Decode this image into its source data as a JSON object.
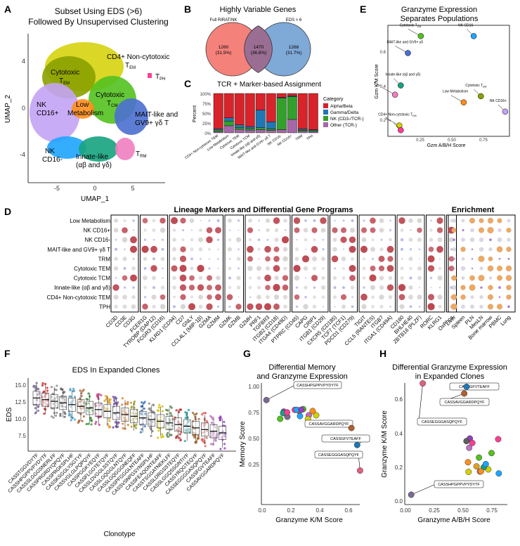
{
  "panel_letters": [
    "A",
    "B",
    "C",
    "D",
    "E",
    "F",
    "G",
    "H"
  ],
  "colors": {
    "cd4_noncyto": "#d4d000",
    "mait": "#4b6fd0",
    "nk_cd16pos": "#c3a3f5",
    "low_met": "#ff8e1c",
    "nk_cd16neg": "#1fa4ff",
    "innate": "#16a37f",
    "trm": "#ef7ec0",
    "tph": "#ff3e93",
    "cyto_tem": "#8aa100",
    "cyto_tcm": "#53c11f",
    "venn_left": "#f4827b",
    "venn_right": "#7fa9d7",
    "venn_overlap": "#9a6e93",
    "alpha_beta": "#d8232a",
    "gamma_delta": "#1f78b4",
    "nk_cd3": "#33a02c",
    "other": "#a567a8"
  },
  "panelA": {
    "title_line1": "Subset Using EDS (>6)",
    "title_line2": "Followed By Unsupervised Clustering",
    "xlabel": "UMAP_1",
    "ylabel": "UMAP_2",
    "xticks": [
      "-5",
      "0",
      "5"
    ],
    "yticks": [
      "4",
      "0",
      "-4"
    ],
    "labels": {
      "cd4_a": "CD4+ Non-cytotoxic",
      "cd4_b": "T",
      "cd4_sub": "EM",
      "tph_a": "T",
      "tph_sub": "PH",
      "cyto_tem_a": "Cytotoxic",
      "cyto_tem_b": "T",
      "cyto_tem_sub": "EM",
      "cyto_tcm_a": "Cytotoxic",
      "cyto_tcm_b": "T",
      "cyto_tcm_sub": "CM",
      "nk16p_a": "NK",
      "nk16p_b": "CD16+",
      "lowmet_a": "Low",
      "lowmet_b": "Metabolism",
      "mait_a": "MAIT-like and",
      "mait_b": "GV9+  γδ T",
      "nk16n_a": "NK",
      "nk16n_b": "CD16-",
      "innate_a": "Innate-like",
      "innate_b": "(αβ and γδ)",
      "trm_a": "T",
      "trm_sub": "RM"
    }
  },
  "panelB": {
    "title": "Highly Variable Genes",
    "left_label": "Full RIRAT/NK",
    "right_label": "EDS > 6",
    "left_count": "1260",
    "left_pct": "(31.5%)",
    "mid_count": "1470",
    "mid_pct": "(36.8%)",
    "right_count": "1268",
    "right_pct": "(31.7%)"
  },
  "panelC": {
    "title": "TCR + Marker-based Assignment",
    "ylabel": "Percent",
    "yticks": [
      "100%",
      "75%",
      "50%",
      "25%",
      "0%"
    ],
    "legend_title": "Category",
    "legend": [
      "Alpha/Beta",
      "Gamma/Delta",
      "NK (CD3-/TCR-)",
      "Other (TCR-)"
    ],
    "categories": [
      "CD4+ Non-cytotoxic TEM",
      "Low Metabolism",
      "Cytotoxic TEM",
      "Cytotoxic TCM",
      "Innate-like (αβ and γδ)",
      "MAIT-like and GV9+ γδ T",
      "NK CD16-",
      "NK CD16+",
      "TRM",
      "TPH"
    ]
  },
  "panelD": {
    "title": "Lineage Markers and Differential Gene Programs",
    "enrich_title": "Enrichment",
    "rows": [
      "Low Metabolism",
      "NK CD16+",
      "NK CD16-",
      "MAIT-like and GV9+ γδ T",
      "TRM",
      "Cytotoxic TEM",
      "Cytotoxic TCM",
      "Innate-like (αβ and γδ)",
      "CD4+ Non-cytotoxic TEM",
      "TPH"
    ],
    "genes": [
      "CD3D",
      "CD3E",
      "CD3G",
      "FCER1G",
      "TYROBP (DAP12)",
      "FCGR3 (CD16)",
      "KLRD1 (CD94)",
      "CD7",
      "GNLY",
      "CCL4L1 (MIP-1β)",
      "GZMA",
      "GZMM",
      "GZMK",
      "GZMB",
      "GZMH",
      "PRF1",
      "TGFBR3",
      "ITGB2 (CD18)",
      "ITGA4 (CD49D)",
      "PTPRC (CD45)",
      "CAPG",
      "CRIP1",
      "ITGB1 (CD29)",
      "CXCR5 (CD185)",
      "TCF7 (TCF1)",
      "PDCD1 (CD279)",
      "TIGIT",
      "CCL5 (RANTES)",
      "ITGB7",
      "ITGA1 (CD49A)",
      "CD160",
      "BHLHE40",
      "ZBTB16 (PLZF)",
      "RORC",
      "KLRG1",
      "OxPhos"
    ],
    "enrich_cols": [
      "Liver",
      "Spleen",
      "PLN",
      "MesLN",
      "Bone marrow",
      "PBMC",
      "Lung"
    ]
  },
  "panelE": {
    "title_line1": "Granzyme Expression",
    "title_line2": "Separates Populations",
    "xlabel": "Gzm A/B/H Score",
    "ylabel": "Gzm K/M Score",
    "xticks": [
      "0.25",
      "0.50",
      "0.75"
    ],
    "yticks": [
      "0.6",
      "0.4",
      "0.2"
    ],
    "points": [
      {
        "label": "Cytotoxic T",
        "sub": "CM",
        "x": 0.28,
        "y": 0.68,
        "color": "#53c11f"
      },
      {
        "label": "NK CD16-",
        "sub": "",
        "x": 0.65,
        "y": 0.68,
        "color": "#1fa4ff"
      },
      {
        "label": "MAIT-like and GV9+ γδ",
        "sub": "",
        "x": 0.19,
        "y": 0.57,
        "color": "#4b6fd0"
      },
      {
        "label": "Innate-like (αβ and γδ)",
        "sub": "",
        "x": 0.14,
        "y": 0.36,
        "color": "#16a37f"
      },
      {
        "label": "T",
        "sub": "RM",
        "x": 0.1,
        "y": 0.3,
        "color": "#ef7ec0"
      },
      {
        "label": "Cytotoxic T",
        "sub": "EM",
        "x": 0.7,
        "y": 0.29,
        "color": "#8aa100"
      },
      {
        "label": "Low Metabolism",
        "sub": "",
        "x": 0.58,
        "y": 0.25,
        "color": "#ff8e1c"
      },
      {
        "label": "NK CD16+",
        "sub": "",
        "x": 0.87,
        "y": 0.19,
        "color": "#c3a3f5"
      },
      {
        "label": "CD4+ Non-cytotoxic T",
        "sub": "EM",
        "x": 0.13,
        "y": 0.1,
        "color": "#d4d000"
      },
      {
        "label": "T",
        "sub": "PH",
        "x": 0.14,
        "y": 0.07,
        "color": "#ff3e93"
      }
    ]
  },
  "panelF": {
    "title": "EDS In Expanded Clones",
    "xlabel": "Clonotype",
    "ylabel": "EDS",
    "yticks": [
      "15.0",
      "12.5",
      "10.0",
      "7.5"
    ],
    "clonotypes": [
      "CASSTGGVDYTF",
      "CASSHPGPPVPYDYTF",
      "CASSSLGGGSNERLFF",
      "CASSPRGRDYQPQYF",
      "CASSPRGKSPLHF",
      "CASSKSGGLYSGTYF",
      "CASSVGLGLPQPQYF",
      "CASSPGGKYEQYF",
      "CASSFLGGTETQYF",
      "CASSLDVGGLSSTQYF",
      "CASSLGQGGLNTQYF",
      "CASSLGQGGGNEQFF",
      "CASSPFGGGLNTEAFF",
      "CASSVSNPGSYNSPLHF",
      "CASSFEAQGNTEAFF",
      "CASSTSGGATNEKLFF",
      "CASSLDRGSSTEQYF",
      "CASSLGGQSSGNTIYF",
      "CASSYRQGTEQYF",
      "CASSEGGGGASQPQYF",
      "CASSFGVTEAFF",
      "CASSAVGGARDPQYF"
    ]
  },
  "panelG": {
    "title_line1": "Differential Memory",
    "title_line2": "and Granzyme Expression",
    "xlabel": "Granzyme K/M Score",
    "ylabel": "Memory Score",
    "xticks": [
      "0.0",
      "0.2",
      "0.4",
      "0.6"
    ],
    "yticks": [
      "1.00",
      "0.75",
      "0.50",
      "0.25"
    ],
    "callouts": [
      "CASSHPGPPVPYDYTF",
      "CASSAVGGARDPQYF",
      "CASSGFVTEAFF",
      "CASSEGGGASQPQYF"
    ]
  },
  "panelH": {
    "title_line1": "Differential Granzyme Expression",
    "title_line2": "in Expanded Clones",
    "xlabel": "Granzyme A/B/H Score",
    "ylabel": "Granzyme K/M Score",
    "xticks": [
      "0.00",
      "0.25",
      "0.50",
      "0.75"
    ],
    "yticks": [
      "0.6",
      "0.4",
      "0.2",
      "0.0"
    ],
    "callouts": [
      "CASSGFVTEAFF",
      "CASSAVGGARDPQYF",
      "CASSEGGGASQPQYF",
      "CASSHPGPPVPYDYTF"
    ]
  }
}
